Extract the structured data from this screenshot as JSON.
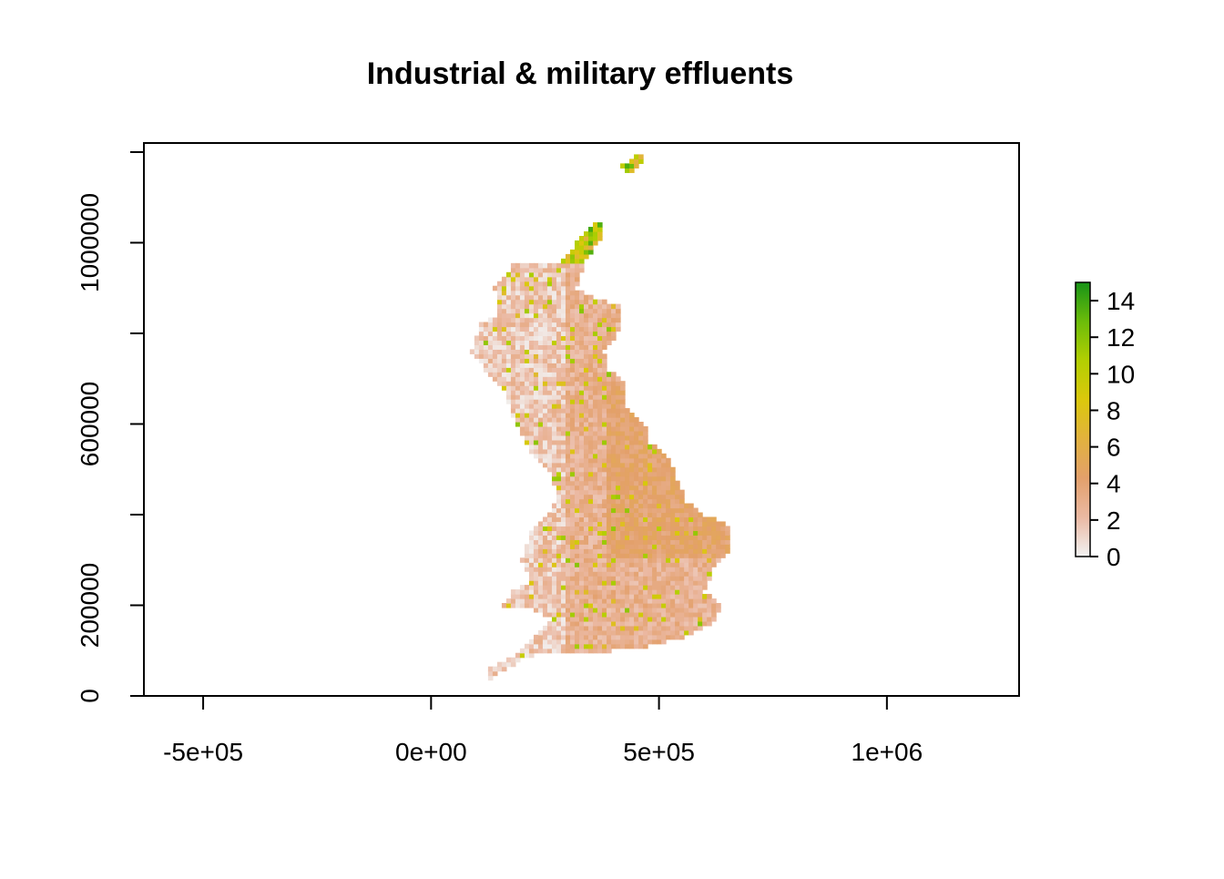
{
  "chart_data": {
    "type": "heatmap",
    "title": "Industrial & military effluents",
    "xlabel": "",
    "ylabel": "",
    "xlim": [
      -630000,
      1290000
    ],
    "ylim": [
      0,
      1220000
    ],
    "x_ticks": [
      {
        "value": -500000,
        "label": "-5e+05"
      },
      {
        "value": 0,
        "label": "0e+00"
      },
      {
        "value": 500000,
        "label": "5e+05"
      },
      {
        "value": 1000000,
        "label": "1e+06"
      }
    ],
    "y_ticks": [
      {
        "value": 0,
        "label": "0"
      },
      {
        "value": 200000,
        "label": "200000"
      },
      {
        "value": 400000,
        "label": ""
      },
      {
        "value": 600000,
        "label": "600000"
      },
      {
        "value": 800000,
        "label": ""
      },
      {
        "value": 1000000,
        "label": "1000000"
      },
      {
        "value": 1200000,
        "label": ""
      }
    ],
    "grid": false,
    "legend": {
      "placement": "right",
      "range": [
        0,
        15
      ],
      "ticks": [
        {
          "value": 0,
          "label": "0"
        },
        {
          "value": 2,
          "label": "2"
        },
        {
          "value": 4,
          "label": "4"
        },
        {
          "value": 6,
          "label": "6"
        },
        {
          "value": 8,
          "label": "8"
        },
        {
          "value": 10,
          "label": "10"
        },
        {
          "value": 12,
          "label": "12"
        },
        {
          "value": 14,
          "label": "14"
        }
      ],
      "colors": [
        "#f2f2f2",
        "#ebb9a3",
        "#e3a06b",
        "#e2b23e",
        "#dbc80c",
        "#b3cf02",
        "#6cbc0a",
        "#179317"
      ]
    },
    "region": "Great Britain",
    "cell_size": 10000
  }
}
